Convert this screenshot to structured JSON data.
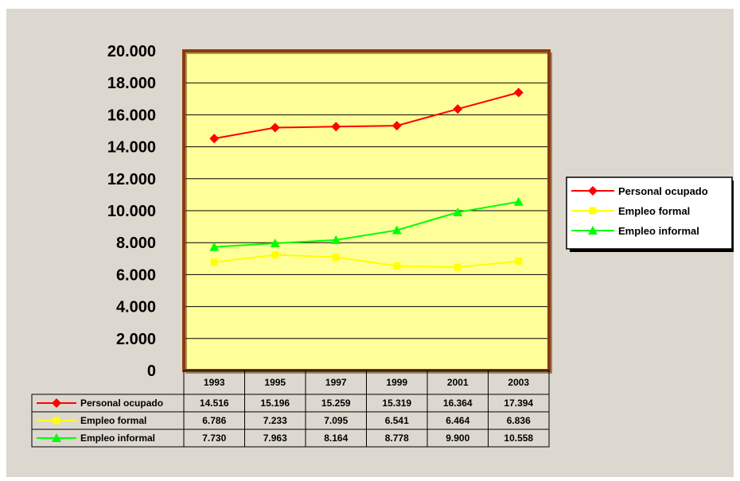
{
  "colors": {
    "outer_background": "#ddd8cf",
    "plot_background": "#ffff99",
    "plot_border": "#8b3a0e",
    "gridline": "#000000"
  },
  "chart_data": {
    "type": "line",
    "title": "",
    "xlabel": "",
    "ylabel": "",
    "categories": [
      "1993",
      "1995",
      "1997",
      "1999",
      "2001",
      "2003"
    ],
    "ylim": [
      0,
      20000
    ],
    "y_ticks": [
      "0",
      "2.000",
      "4.000",
      "6.000",
      "8.000",
      "10.000",
      "12.000",
      "14.000",
      "16.000",
      "18.000",
      "20.000"
    ],
    "grid": true,
    "legend_position": "right",
    "data_table": true,
    "series": [
      {
        "name": "Personal ocupado",
        "color": "#ff0000",
        "marker": "diamond",
        "values": [
          14516,
          15196,
          15259,
          15319,
          16364,
          17394
        ],
        "table_values": [
          "14.516",
          "15.196",
          "15.259",
          "15.319",
          "16.364",
          "17.394"
        ]
      },
      {
        "name": "Empleo formal",
        "color": "#ffff00",
        "marker": "square",
        "values": [
          6786,
          7233,
          7095,
          6541,
          6464,
          6836
        ],
        "table_values": [
          "6.786",
          "7.233",
          "7.095",
          "6.541",
          "6.464",
          "6.836"
        ]
      },
      {
        "name": "Empleo informal",
        "color": "#00ff00",
        "marker": "triangle",
        "values": [
          7730,
          7963,
          8164,
          8778,
          9900,
          10558
        ],
        "table_values": [
          "7.730",
          "7.963",
          "8.164",
          "8.778",
          "9.900",
          "10.558"
        ]
      }
    ]
  }
}
